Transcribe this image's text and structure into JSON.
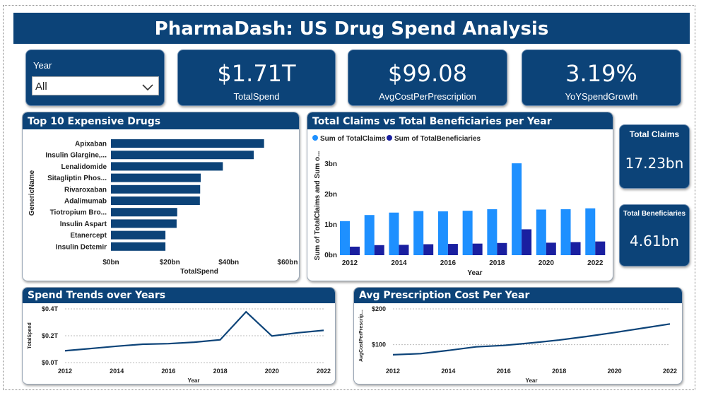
{
  "header": {
    "title": "PharmaDash: US Drug Spend Analysis"
  },
  "year_filter": {
    "label": "Year",
    "value": "All"
  },
  "kpis": {
    "total_spend": {
      "value": "$1.71T",
      "label": "TotalSpend"
    },
    "avg_cost": {
      "value": "$99.08",
      "label": "AvgCostPerPrescription"
    },
    "yoy_growth": {
      "value": "3.19%",
      "label": "YoYSpendGrowth"
    },
    "total_claims": {
      "value": "17.23bn",
      "label": "Total Claims"
    },
    "total_beneficiaries": {
      "value": "4.61bn",
      "label": "Total Beneficiaries"
    }
  },
  "colors": {
    "navy": "#0c4378",
    "claims": "#1e90ff",
    "beneficiaries": "#1a1fa0",
    "line": "#0c4378"
  },
  "icons": {
    "dropdown": "chevron-down-icon"
  },
  "chart_data": [
    {
      "id": "top_drugs",
      "type": "bar",
      "orientation": "horizontal",
      "title": "Top 10 Expensive Drugs",
      "xlabel": "TotalSpend",
      "ylabel": "GenericName",
      "categories": [
        "Apixaban",
        "Insulin Glargine,...",
        "Lenalidomide",
        "Sitagliptin Phos...",
        "Rivaroxaban",
        "Adalimumab",
        "Tiotropium Bro...",
        "Insulin Aspart",
        "Etanercept",
        "Insulin Detemir"
      ],
      "values": [
        52,
        48.5,
        38,
        30.5,
        30.3,
        30.2,
        22.5,
        22.3,
        18.5,
        18.5
      ],
      "xlim": [
        0,
        60
      ],
      "xticks": [
        0,
        20,
        40,
        60
      ],
      "xtick_labels": [
        "$0bn",
        "$20bn",
        "$40bn",
        "$60bn"
      ]
    },
    {
      "id": "claims_vs_beneficiaries",
      "type": "bar",
      "title": "Total Claims vs Total Beneficiaries per Year",
      "xlabel": "Year",
      "ylabel": "Sum of TotalClaims and Sum o...",
      "x": [
        2012,
        2013,
        2014,
        2015,
        2016,
        2017,
        2018,
        2019,
        2020,
        2021,
        2022
      ],
      "xtick_labels": [
        "2012",
        "2014",
        "2016",
        "2018",
        "2020",
        "2022"
      ],
      "series": [
        {
          "name": "Sum of TotalClaims",
          "values": [
            1.12,
            1.32,
            1.4,
            1.45,
            1.44,
            1.46,
            1.51,
            3.02,
            1.5,
            1.51,
            1.54
          ]
        },
        {
          "name": "Sum of TotalBeneficiaries",
          "values": [
            0.28,
            0.33,
            0.34,
            0.36,
            0.37,
            0.38,
            0.4,
            0.85,
            0.41,
            0.43,
            0.45
          ]
        }
      ],
      "ylim": [
        0,
        3.3
      ],
      "yticks": [
        0,
        1,
        2,
        3
      ],
      "ytick_labels": [
        "0bn",
        "1bn",
        "2bn",
        "3bn"
      ],
      "legend": "top-left"
    },
    {
      "id": "spend_trends",
      "type": "line",
      "title": "Spend Trends over Years",
      "xlabel": "Year",
      "ylabel": "TotalSpend",
      "x": [
        2012,
        2013,
        2014,
        2015,
        2016,
        2017,
        2018,
        2019,
        2020,
        2021,
        2022
      ],
      "values": [
        0.088,
        0.105,
        0.122,
        0.137,
        0.141,
        0.152,
        0.17,
        0.378,
        0.198,
        0.222,
        0.24
      ],
      "ylim": [
        0,
        0.4
      ],
      "yticks": [
        0,
        0.2,
        0.4
      ],
      "ytick_labels": [
        "$0.0T",
        "$0.2T",
        "$0.4T"
      ],
      "xtick_labels": [
        "2012",
        "2014",
        "2016",
        "2018",
        "2020",
        "2022"
      ]
    },
    {
      "id": "avg_cost_trend",
      "type": "line",
      "title": "Avg Prescription Cost Per Year",
      "xlabel": "Year",
      "ylabel": "AvgCostPerPrescrip...",
      "x": [
        2012,
        2013,
        2014,
        2015,
        2016,
        2017,
        2018,
        2019,
        2020,
        2021,
        2022
      ],
      "values": [
        72,
        75,
        84,
        94,
        98,
        105,
        113,
        123,
        134,
        146,
        158
      ],
      "ylim": [
        50,
        200
      ],
      "yticks": [
        100,
        200
      ],
      "ytick_labels": [
        "$100",
        "$200"
      ],
      "xtick_labels": [
        "2012",
        "2014",
        "2016",
        "2018",
        "2020",
        "2022"
      ]
    }
  ]
}
